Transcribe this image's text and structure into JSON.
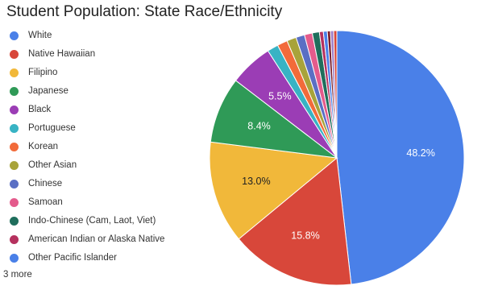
{
  "chart_data": {
    "type": "pie",
    "title": "Student Population:  State Race/Ethnicity",
    "slices": [
      {
        "name": "White",
        "value": 48.2,
        "color": "#4a80e8",
        "label": "48.2%"
      },
      {
        "name": "Native Hawaiian",
        "value": 15.8,
        "color": "#d8473a",
        "label": "15.8%"
      },
      {
        "name": "Filipino",
        "value": 13.0,
        "color": "#f1b83a",
        "label": "13.0%"
      },
      {
        "name": "Japanese",
        "value": 8.4,
        "color": "#2f9a57",
        "label": "8.4%"
      },
      {
        "name": "Black",
        "value": 5.5,
        "color": "#9b3db5",
        "label": "5.5%"
      },
      {
        "name": "Portuguese",
        "value": 1.4,
        "color": "#38b3c4",
        "label": ""
      },
      {
        "name": "Korean",
        "value": 1.3,
        "color": "#f26b3a",
        "label": ""
      },
      {
        "name": "Other Asian",
        "value": 1.2,
        "color": "#a8a33a",
        "label": ""
      },
      {
        "name": "Chinese",
        "value": 1.1,
        "color": "#5a6fc4",
        "label": ""
      },
      {
        "name": "Samoan",
        "value": 1.0,
        "color": "#e45b8c",
        "label": ""
      },
      {
        "name": "Indo-Chinese (Cam, Laot, Viet)",
        "value": 0.9,
        "color": "#1f6e5c",
        "label": ""
      },
      {
        "name": "American Indian or Alaska Native",
        "value": 0.5,
        "color": "#b5315e",
        "label": ""
      },
      {
        "name": "Other Pacific Islander",
        "value": 0.5,
        "color": "#4a80e8",
        "label": ""
      },
      {
        "name": "",
        "value": 0.4,
        "color": "#7b1f2c",
        "label": ""
      },
      {
        "name": "",
        "value": 0.4,
        "color": "#9e7ec8",
        "label": ""
      },
      {
        "name": "",
        "value": 0.4,
        "color": "#d8473a",
        "label": ""
      }
    ],
    "legend_more": "3 more",
    "legend_position": "left"
  }
}
